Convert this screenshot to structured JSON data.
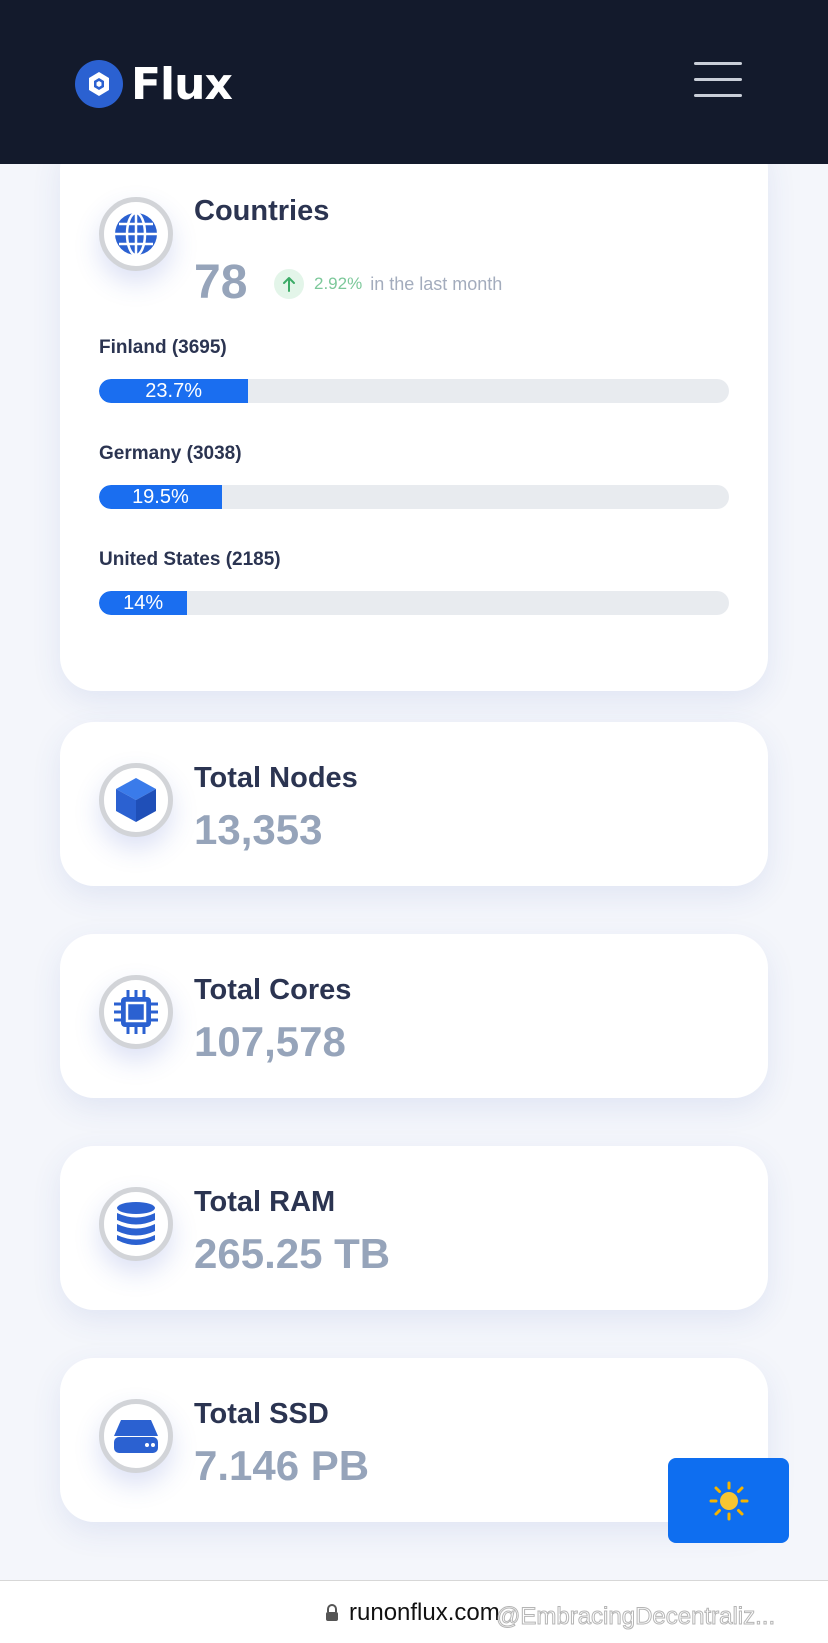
{
  "header": {
    "brand": "Flux",
    "logo_icon": "flux-logo-icon",
    "menu_icon": "hamburger-menu-icon"
  },
  "countries": {
    "icon": "globe-icon",
    "title": "Countries",
    "value": "78",
    "trend_icon": "arrow-up-icon",
    "trend_pct": "2.92%",
    "trend_text": "in the last month",
    "items": [
      {
        "label": "Finland (3695)",
        "percent_label": "23.7%",
        "percent": 23.7
      },
      {
        "label": "Germany (3038)",
        "percent_label": "19.5%",
        "percent": 19.5
      },
      {
        "label": "United States (2185)",
        "percent_label": "14%",
        "percent": 14
      }
    ]
  },
  "stats": [
    {
      "icon": "cube-icon",
      "title": "Total Nodes",
      "value": "13,353"
    },
    {
      "icon": "cpu-chip-icon",
      "title": "Total Cores",
      "value": "107,578"
    },
    {
      "icon": "database-icon",
      "title": "Total RAM",
      "value": "265.25 TB"
    },
    {
      "icon": "hard-drive-icon",
      "title": "Total SSD",
      "value": "7.146 PB"
    }
  ],
  "theme_toggle": {
    "icon": "sun-icon"
  },
  "browser": {
    "lock_icon": "lock-icon",
    "url": "runonflux.com",
    "watermark": "@EmbracingDecentraliz..."
  },
  "colors": {
    "header_bg": "#131a2c",
    "accent": "#1a6ef0",
    "title_text": "#2b3451",
    "value_text": "#96a4ba",
    "trend_green": "#7cc89a"
  }
}
